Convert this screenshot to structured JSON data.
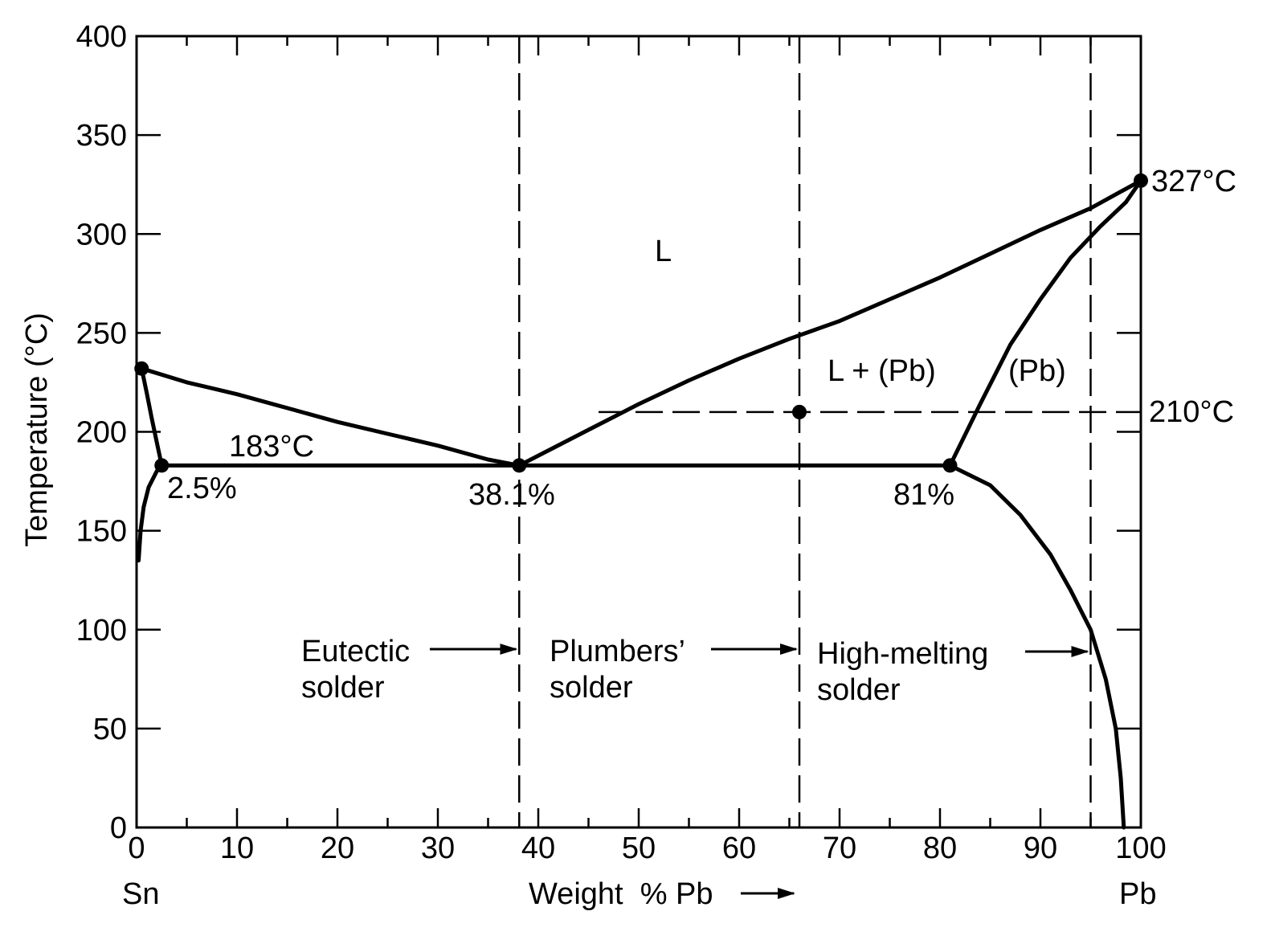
{
  "chart_data": {
    "type": "line",
    "title": "",
    "xlabel": "Weight  % Pb",
    "ylabel": "Temperature (°C)",
    "x_end_labels": {
      "left": "Sn",
      "right": "Pb"
    },
    "xlim": [
      0,
      100
    ],
    "ylim": [
      0,
      400
    ],
    "x_ticks": [
      0,
      10,
      20,
      30,
      40,
      50,
      60,
      70,
      80,
      90,
      100
    ],
    "y_ticks": [
      0,
      50,
      100,
      150,
      200,
      250,
      300,
      350,
      400
    ],
    "grid": false,
    "series": [
      {
        "id": "liquidus-left",
        "x": [
          0.5,
          5,
          10,
          15,
          20,
          25,
          30,
          35,
          38.1
        ],
        "y": [
          232,
          225,
          219,
          212,
          205,
          199,
          193,
          186,
          183
        ]
      },
      {
        "id": "liquidus-right",
        "x": [
          38.1,
          45,
          50,
          55,
          60,
          65,
          70,
          75,
          80,
          85,
          90,
          95,
          100
        ],
        "y": [
          183,
          201,
          214,
          226,
          237,
          247,
          256,
          267,
          278,
          290,
          302,
          313,
          327
        ]
      },
      {
        "id": "solidus-sn",
        "x": [
          0.5,
          1,
          1.5,
          2,
          2.5
        ],
        "y": [
          232,
          220,
          207,
          195,
          183
        ]
      },
      {
        "id": "solvus-sn",
        "x": [
          0.2,
          0.4,
          0.7,
          1.2,
          2,
          2.5
        ],
        "y": [
          135,
          150,
          162,
          172,
          180,
          183
        ]
      },
      {
        "id": "eutectic-line",
        "x": [
          2.5,
          38.1,
          81
        ],
        "y": [
          183,
          183,
          183
        ]
      },
      {
        "id": "solidus-pb",
        "x": [
          81,
          84,
          87,
          90,
          93,
          96,
          98.5,
          100
        ],
        "y": [
          183,
          214,
          244,
          267,
          288,
          304,
          316,
          327
        ]
      },
      {
        "id": "solvus-pb",
        "x": [
          81,
          85,
          88,
          91,
          93,
          95,
          96.5,
          97.5,
          98,
          98.3
        ],
        "y": [
          183,
          173,
          158,
          138,
          120,
          100,
          75,
          50,
          25,
          0
        ]
      }
    ],
    "points": [
      {
        "id": "sn-melting-point",
        "x": 0.5,
        "y": 232
      },
      {
        "id": "sn-solubility-limit",
        "x": 2.5,
        "y": 183
      },
      {
        "id": "eutectic-point",
        "x": 38.1,
        "y": 183
      },
      {
        "id": "pb-solubility-limit",
        "x": 81,
        "y": 183
      },
      {
        "id": "pb-melting-point",
        "x": 100,
        "y": 327
      },
      {
        "id": "plumbers-solder-210",
        "x": 66,
        "y": 210
      }
    ],
    "dashed_verticals": [
      38.1,
      66,
      95
    ],
    "dashed_horizontal": {
      "y": 210,
      "x_from": 46,
      "x_to": 100
    },
    "annotations": {
      "eutectic_temp": "183°C",
      "sn_limit": "2.5%",
      "eutectic_comp": "38.1%",
      "pb_limit": "81%",
      "pb_melt": "327°C",
      "temp_210": "210°C"
    },
    "regions": {
      "liquid": "L",
      "liquid_plus_pb": "L + (Pb)",
      "pb_solid": "(Pb)"
    },
    "solders": [
      {
        "line1": "Eutectic",
        "line2": "solder",
        "arrow_to_x": 38.1
      },
      {
        "line1": "Plumbers’",
        "line2": "solder",
        "arrow_to_x": 66
      },
      {
        "line1": "High-melting",
        "line2": "solder",
        "arrow_to_x": 95
      }
    ]
  }
}
